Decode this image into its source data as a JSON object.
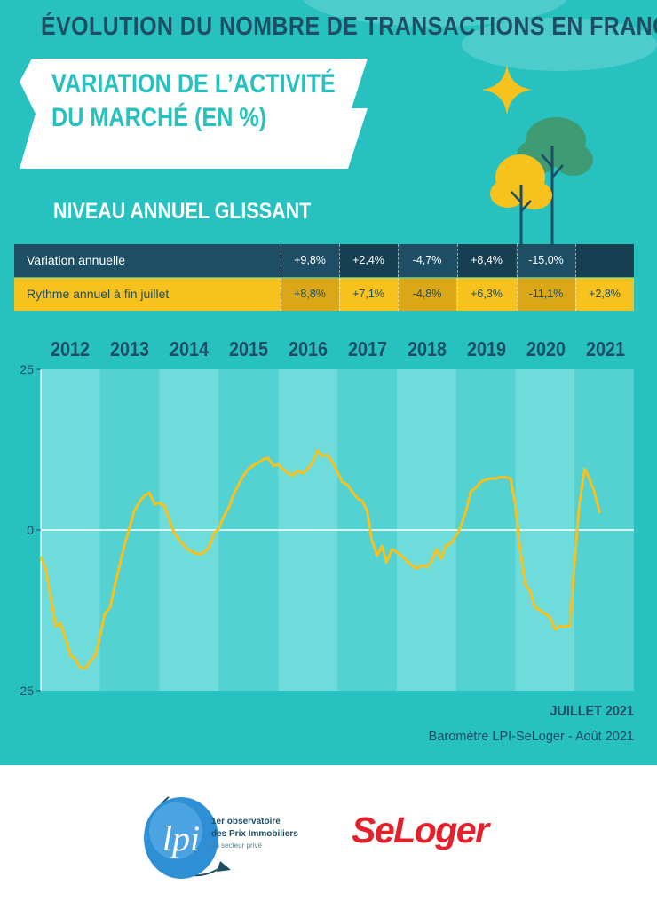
{
  "header": {
    "title": "ÉVOLUTION DU NOMBRE DE TRANSACTIONS EN FRANCE",
    "subtitle_line1": "VARIATION DE L’ACTIVITÉ",
    "subtitle_line2": "DU MARCHÉ (EN %)",
    "section_label": "NIVEAU ANNUEL GLISSANT"
  },
  "table": {
    "rows": [
      {
        "label": "Variation annuelle",
        "values": [
          "+9,8%",
          "+2,4%",
          "-4,7%",
          "+8,4%",
          "-15,0%",
          ""
        ]
      },
      {
        "label": "Rythme annuel à fin juillet",
        "values": [
          "+8,8%",
          "+7,1%",
          "-4,8%",
          "+6,3%",
          "-11,1%",
          "+2,8%"
        ]
      }
    ]
  },
  "chart_data": {
    "type": "line",
    "title": "VARIATION DE L’ACTIVITÉ DU MARCHÉ (EN %)",
    "subtitle": "NIVEAU ANNUEL GLISSANT",
    "xlabel": "",
    "ylabel": "",
    "x_tick_labels": [
      "2012",
      "2013",
      "2014",
      "2015",
      "2016",
      "2017",
      "2018",
      "2019",
      "2020",
      "2021"
    ],
    "y_tick_labels": [
      "25",
      "0",
      "-25"
    ],
    "ylim": [
      -25,
      25
    ],
    "xlim": [
      2012.0,
      2022.0
    ],
    "grid": "alternating year bands",
    "series": [
      {
        "color": "#f7c11e",
        "points": [
          [
            2012.0,
            -4.3
          ],
          [
            2012.08,
            -6.0
          ],
          [
            2012.17,
            -10.5
          ],
          [
            2012.25,
            -15.0
          ],
          [
            2012.33,
            -14.5
          ],
          [
            2012.42,
            -17.0
          ],
          [
            2012.5,
            -19.5
          ],
          [
            2012.58,
            -20.0
          ],
          [
            2012.67,
            -21.5
          ],
          [
            2012.75,
            -21.5
          ],
          [
            2012.83,
            -20.5
          ],
          [
            2012.92,
            -19.5
          ],
          [
            2013.0,
            -16.5
          ],
          [
            2013.08,
            -13.0
          ],
          [
            2013.17,
            -12.0
          ],
          [
            2013.25,
            -8.5
          ],
          [
            2013.33,
            -5.5
          ],
          [
            2013.42,
            -2.0
          ],
          [
            2013.5,
            0.5
          ],
          [
            2013.58,
            3.0
          ],
          [
            2013.67,
            4.5
          ],
          [
            2013.75,
            5.3
          ],
          [
            2013.83,
            5.8
          ],
          [
            2013.92,
            4.0
          ],
          [
            2014.0,
            4.2
          ],
          [
            2014.08,
            3.8
          ],
          [
            2014.17,
            1.5
          ],
          [
            2014.25,
            -0.5
          ],
          [
            2014.33,
            -1.5
          ],
          [
            2014.42,
            -2.5
          ],
          [
            2014.5,
            -3.2
          ],
          [
            2014.58,
            -3.5
          ],
          [
            2014.67,
            -3.8
          ],
          [
            2014.75,
            -3.5
          ],
          [
            2014.83,
            -2.8
          ],
          [
            2014.92,
            -0.5
          ],
          [
            2015.0,
            0.2
          ],
          [
            2015.08,
            2.0
          ],
          [
            2015.17,
            3.5
          ],
          [
            2015.25,
            5.5
          ],
          [
            2015.33,
            7.0
          ],
          [
            2015.42,
            8.5
          ],
          [
            2015.5,
            9.5
          ],
          [
            2015.58,
            10.0
          ],
          [
            2015.67,
            10.5
          ],
          [
            2015.75,
            11.0
          ],
          [
            2015.83,
            11.2
          ],
          [
            2015.92,
            10.0
          ],
          [
            2016.0,
            10.2
          ],
          [
            2016.08,
            9.5
          ],
          [
            2016.17,
            8.8
          ],
          [
            2016.25,
            8.5
          ],
          [
            2016.33,
            9.2
          ],
          [
            2016.42,
            8.8
          ],
          [
            2016.5,
            9.5
          ],
          [
            2016.58,
            10.5
          ],
          [
            2016.67,
            12.3
          ],
          [
            2016.75,
            11.5
          ],
          [
            2016.83,
            11.7
          ],
          [
            2016.92,
            10.5
          ],
          [
            2017.0,
            9.0
          ],
          [
            2017.08,
            7.5
          ],
          [
            2017.17,
            7.0
          ],
          [
            2017.25,
            6.0
          ],
          [
            2017.33,
            5.0
          ],
          [
            2017.42,
            4.5
          ],
          [
            2017.5,
            3.0
          ],
          [
            2017.58,
            -1.5
          ],
          [
            2017.67,
            -4.0
          ],
          [
            2017.75,
            -2.5
          ],
          [
            2017.83,
            -5.0
          ],
          [
            2017.92,
            -3.0
          ],
          [
            2018.0,
            -3.5
          ],
          [
            2018.08,
            -4.0
          ],
          [
            2018.17,
            -4.8
          ],
          [
            2018.25,
            -5.5
          ],
          [
            2018.33,
            -6.0
          ],
          [
            2018.42,
            -5.5
          ],
          [
            2018.5,
            -5.8
          ],
          [
            2018.58,
            -5.0
          ],
          [
            2018.67,
            -3.0
          ],
          [
            2018.75,
            -4.5
          ],
          [
            2018.83,
            -2.5
          ],
          [
            2018.92,
            -2.0
          ],
          [
            2019.0,
            -1.0
          ],
          [
            2019.08,
            0.5
          ],
          [
            2019.17,
            3.0
          ],
          [
            2019.25,
            6.0
          ],
          [
            2019.33,
            6.5
          ],
          [
            2019.42,
            7.5
          ],
          [
            2019.5,
            7.8
          ],
          [
            2019.58,
            8.0
          ],
          [
            2019.67,
            8.0
          ],
          [
            2019.75,
            8.2
          ],
          [
            2019.83,
            8.2
          ],
          [
            2019.92,
            8.0
          ],
          [
            2020.0,
            4.0
          ],
          [
            2020.08,
            -3.0
          ],
          [
            2020.17,
            -8.5
          ],
          [
            2020.25,
            -9.5
          ],
          [
            2020.33,
            -12.0
          ],
          [
            2020.42,
            -12.5
          ],
          [
            2020.5,
            -13.0
          ],
          [
            2020.58,
            -13.5
          ],
          [
            2020.67,
            -15.5
          ],
          [
            2020.75,
            -15.0
          ],
          [
            2020.83,
            -15.0
          ],
          [
            2020.92,
            -15.0
          ],
          [
            2021.0,
            -5.0
          ],
          [
            2021.08,
            4.0
          ],
          [
            2021.17,
            9.5
          ],
          [
            2021.25,
            8.0
          ],
          [
            2021.33,
            6.0
          ],
          [
            2021.42,
            2.8
          ]
        ]
      }
    ],
    "colors": {
      "background": "#27c1c0",
      "band_light": "#6fdcdc",
      "band_dark": "#54d2d1",
      "line": "#f7c11e",
      "zero_line": "#ffffff"
    }
  },
  "footer": {
    "date": "JUILLET 2021",
    "source": "Baromètre LPI-SeLoger - Août 2021"
  },
  "logos": {
    "lpi_mark": "lpi",
    "lpi_sup": "er",
    "lpi_text_line1": "1er observatoire",
    "lpi_text_line2": "des Prix Immobiliers",
    "lpi_text_line3": "du secteur privé",
    "seloger": "SeLoger"
  }
}
